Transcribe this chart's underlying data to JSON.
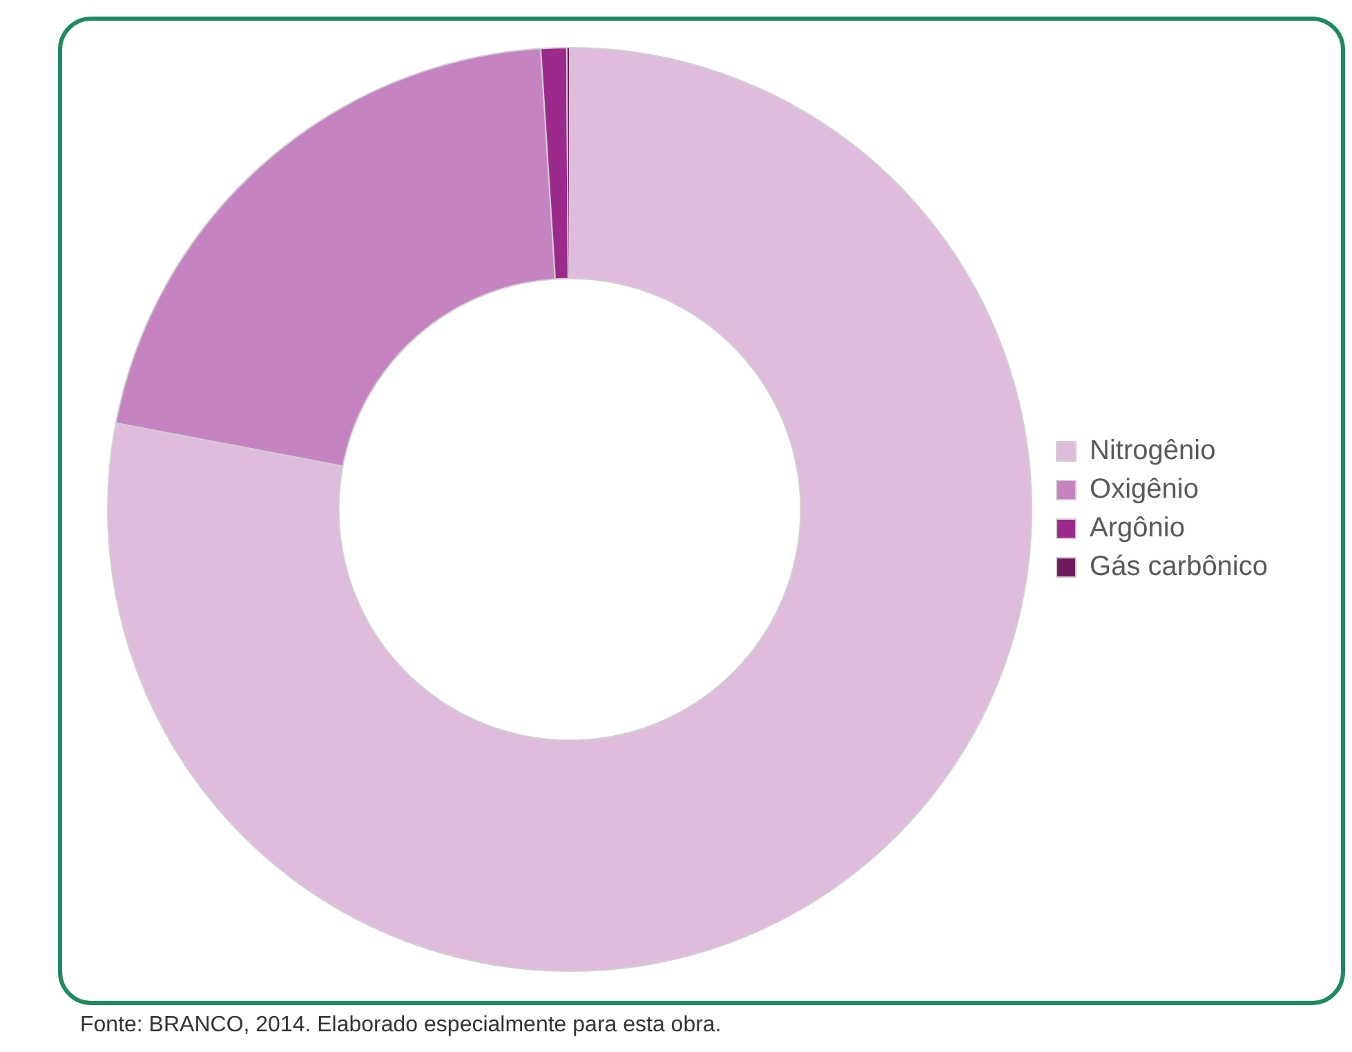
{
  "chart_data": {
    "type": "donut",
    "categories": [
      "Nitrogênio",
      "Oxigênio",
      "Argônio",
      "Gás carbônico"
    ],
    "values": [
      78,
      21,
      0.9,
      0.1
    ],
    "colors": [
      "#e0bcdc",
      "#c683c2",
      "#9c2a8c",
      "#6e1a5e"
    ],
    "legend": "right",
    "annotations": [
      "Fonte: BRANCO, 2014. Elaborado especialmente para esta obra."
    ]
  }
}
